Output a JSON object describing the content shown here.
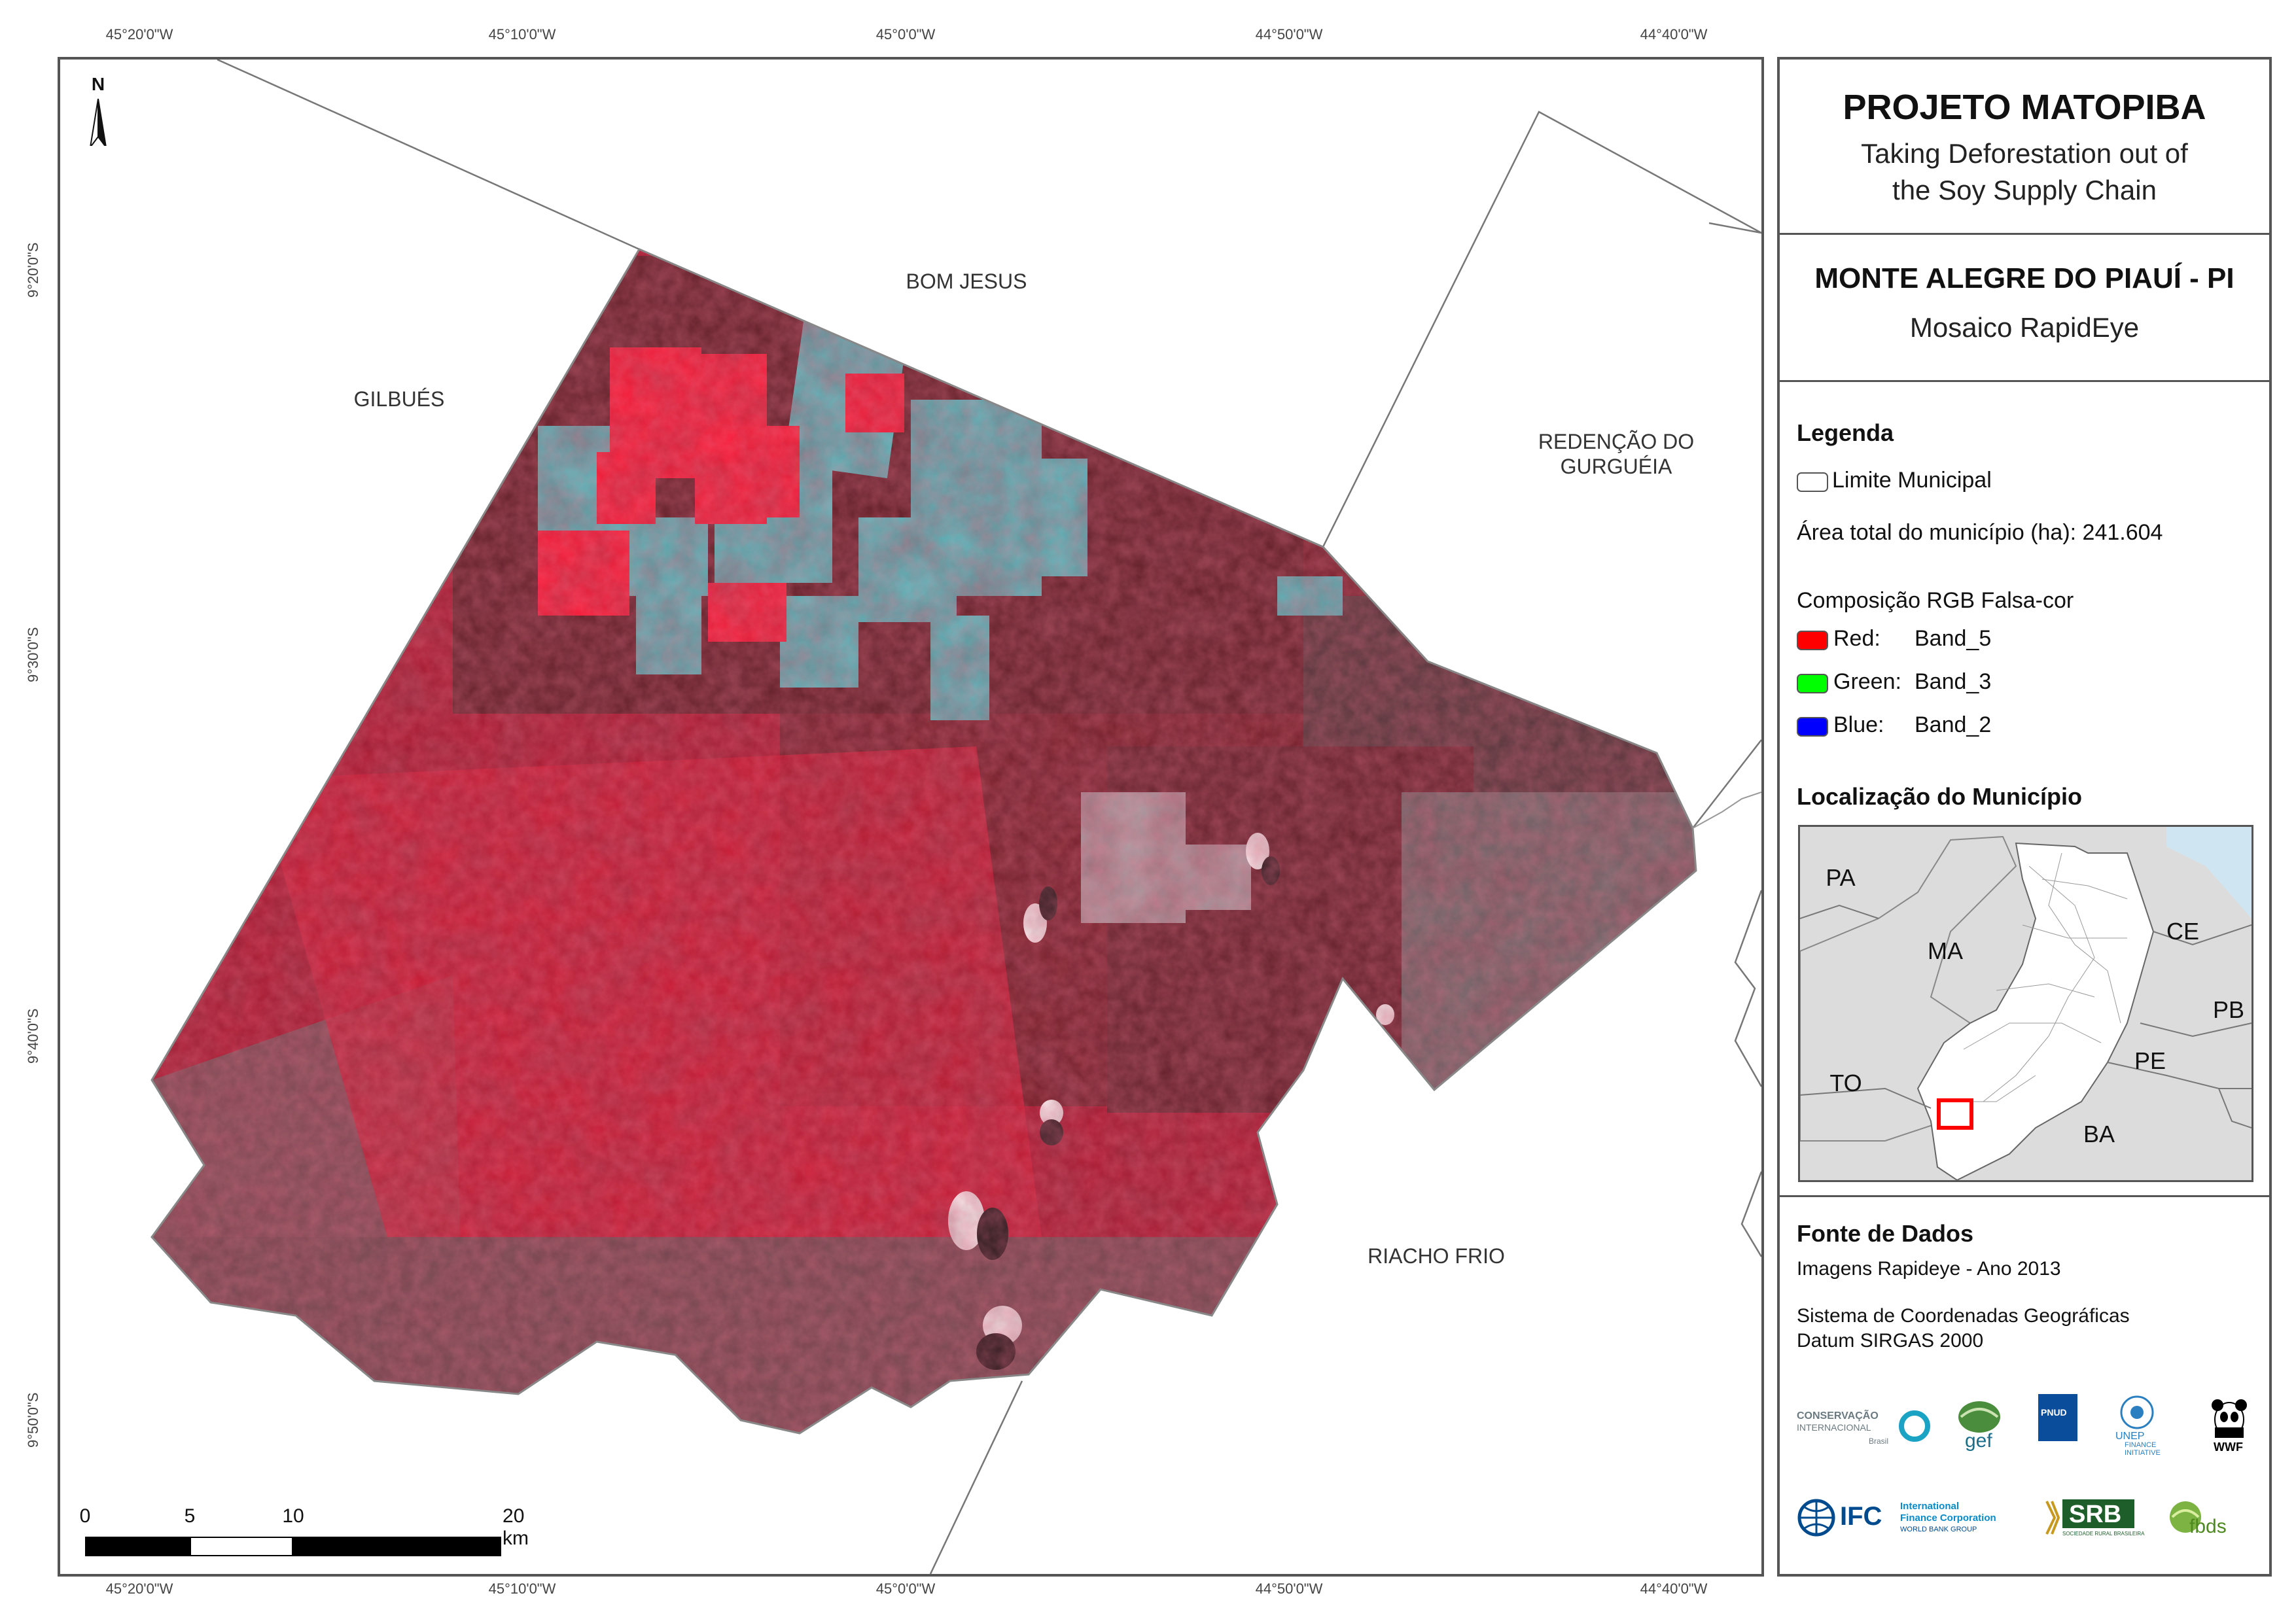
{
  "map": {
    "coordinates": {
      "top_longitudes": [
        "45°20'0\"W",
        "45°10'0\"W",
        "45°0'0\"W",
        "44°50'0\"W",
        "44°40'0\"W"
      ],
      "bottom_longitudes": [
        "45°20'0\"W",
        "45°10'0\"W",
        "45°0'0\"W",
        "44°50'0\"W",
        "44°40'0\"W"
      ],
      "left_latitudes": [
        "9°20'0\"S",
        "9°30'0\"S",
        "9°40'0\"S",
        "9°50'0\"S"
      ]
    },
    "neighbors": {
      "bom_jesus": "BOM JESUS",
      "gilbues": "GILBUÉS",
      "redencao_line1": "REDENÇÃO DO",
      "redencao_line2": "GURGUÉIA",
      "riacho_frio": "RIACHO FRIO"
    },
    "north_label": "N",
    "scale_labels": [
      "0",
      "5",
      "10",
      "20 km"
    ]
  },
  "panel": {
    "project_title": "PROJETO MATOPIBA",
    "project_subtitle_line1": "Taking Deforestation out of",
    "project_subtitle_line2": "the Soy Supply Chain",
    "municipality_title": "MONTE ALEGRE DO PIAUÍ - PI",
    "municipality_subtitle": "Mosaico RapidEye",
    "legend_heading": "Legenda",
    "limit_label": "Limite Municipal",
    "area_label": "Área total do município (ha): 241.604",
    "composition_heading": "Composição RGB Falsa-cor",
    "bands": [
      {
        "channel": "Red:",
        "band": "Band_5",
        "color": "#ff0000"
      },
      {
        "channel": "Green:",
        "band": "Band_3",
        "color": "#00ff00"
      },
      {
        "channel": "Blue:",
        "band": "Band_2",
        "color": "#0000ff"
      }
    ],
    "location_heading": "Localização do Município",
    "inset_states": [
      "PA",
      "MA",
      "CE",
      "PB",
      "PE",
      "TO",
      "BA"
    ],
    "source_heading": "Fonte de Dados",
    "source_line1": "Imagens Rapideye - Ano 2013",
    "source_line2": "Sistema de Coordenadas Geográficas",
    "source_line3": "Datum SIRGAS 2000"
  },
  "logos": {
    "ci_line1": "CONSERVAÇÃO",
    "ci_line2": "INTERNACIONAL",
    "ci_line3": "Brasil",
    "gef": "gef",
    "pnud": "PNUD",
    "unep_line1": "UNEP",
    "unep_line2": "FINANCE",
    "unep_line3": "INITIATIVE",
    "wwf": "WWF",
    "ifc": "IFC",
    "ifc_line1": "International",
    "ifc_line2": "Finance Corporation",
    "ifc_line3": "WORLD BANK GROUP",
    "srb": "SRB",
    "srb_sub": "SOCIEDADE RURAL BRASILEIRA",
    "fbds": "fbds"
  },
  "colors": {
    "frame": "#555555",
    "imagery_red": "#c8102e",
    "imagery_dark": "#6e1a24",
    "imagery_cyan": "#4fc1c4",
    "inset_highlight": "#ff0000",
    "ocean": "#cfe6f2"
  }
}
